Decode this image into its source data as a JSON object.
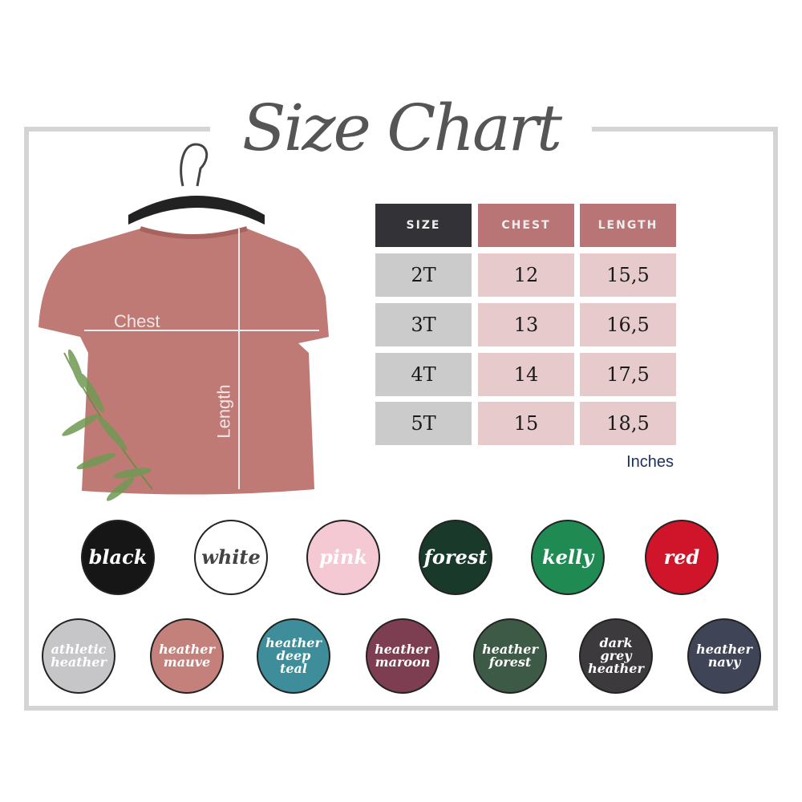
{
  "title": "Size Chart",
  "shirt": {
    "chest_label": "Chest",
    "length_label": "Length",
    "color": "#bf7a76"
  },
  "table": {
    "headers": [
      "SIZE",
      "CHEST",
      "LENGTH"
    ],
    "rows": [
      {
        "size": "2T",
        "chest": "12",
        "length": "15,5"
      },
      {
        "size": "3T",
        "chest": "13",
        "length": "16,5"
      },
      {
        "size": "4T",
        "chest": "14",
        "length": "17,5"
      },
      {
        "size": "5T",
        "chest": "15",
        "length": "18,5"
      }
    ],
    "unit": "Inches",
    "colors": {
      "size_header": "#333236",
      "header": "#b97476",
      "size_cell": "#cbcbcb",
      "value_cell": "#e6cacc"
    }
  },
  "colors_row1": [
    {
      "label": "black",
      "hex": "#161616",
      "text": "#fff"
    },
    {
      "label": "white",
      "hex": "#ffffff",
      "text": "#444"
    },
    {
      "label": "pink",
      "hex": "#f5c9d3",
      "text": "#fff"
    },
    {
      "label": "forest",
      "hex": "#193a2b",
      "text": "#fff"
    },
    {
      "label": "kelly",
      "hex": "#1f8a52",
      "text": "#fff"
    },
    {
      "label": "red",
      "hex": "#d0142a",
      "text": "#fff"
    }
  ],
  "colors_row2": [
    {
      "label": "athletic heather",
      "hex": "#c6c5c7",
      "text": "#fff"
    },
    {
      "label": "heather mauve",
      "hex": "#c4807a",
      "text": "#fff"
    },
    {
      "label": "heather deep teal",
      "hex": "#3d8e9a",
      "text": "#fff"
    },
    {
      "label": "heather maroon",
      "hex": "#7e3e52",
      "text": "#fff"
    },
    {
      "label": "heather forest",
      "hex": "#3c5a45",
      "text": "#fff"
    },
    {
      "label": "dark grey heather",
      "hex": "#3d3a3d",
      "text": "#fff"
    },
    {
      "label": "heather navy",
      "hex": "#3f4557",
      "text": "#fff"
    }
  ]
}
